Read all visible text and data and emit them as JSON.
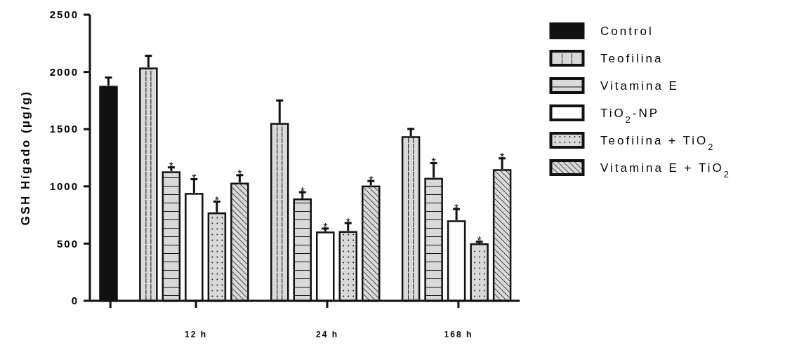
{
  "chart_data": {
    "type": "bar",
    "ylabel": "GSH Hígado (µg/g)",
    "categories": [
      null,
      "12 h",
      "24 h",
      "168 h"
    ],
    "ylim": [
      0,
      2500
    ],
    "yticks": [
      0,
      500,
      1000,
      1500,
      2000,
      2500
    ],
    "grid": false,
    "legend": "right",
    "series": [
      {
        "name": "Control",
        "color": "#111111",
        "values": [
          1880,
          null,
          null,
          null
        ],
        "errors": [
          [
            1880,
            1960
          ],
          null,
          null,
          null
        ]
      },
      {
        "name": "Teofilina",
        "color": "#d9d9d9",
        "values": [
          null,
          2040,
          1556,
          1440
        ],
        "errors": [
          null,
          [
            2040,
            2150
          ],
          [
            1556,
            1760
          ],
          [
            1440,
            1511
          ]
        ]
      },
      {
        "name": "Vitamina E",
        "color": "#d9d9d9",
        "values": [
          null,
          1133,
          896,
          1076
        ],
        "errors": [
          null,
          [
            1133,
            1175
          ],
          [
            896,
            958
          ],
          [
            1076,
            1213
          ]
        ],
        "value_labels": [
          null,
          "*",
          "*",
          "*"
        ]
      },
      {
        "name": "TiO$_{2}$-NP",
        "color": "#ffffff",
        "values": [
          null,
          944,
          607,
          705
        ],
        "errors": [
          null,
          [
            944,
            1072
          ],
          [
            607,
            641
          ],
          [
            705,
            811
          ]
        ],
        "value_labels": [
          null,
          "*",
          "*",
          "*"
        ]
      },
      {
        "name": "Teofilina + TiO$_{2}$",
        "color": "#d9d9d9",
        "values": [
          null,
          774,
          611,
          504
        ],
        "errors": [
          null,
          [
            774,
            876
          ],
          [
            611,
            688
          ],
          [
            504,
            525
          ]
        ],
        "value_labels": [
          null,
          "*",
          "*",
          "*"
        ]
      },
      {
        "name": "Vitamina E + TiO$_{2}$",
        "color": "#d9d9d9",
        "values": [
          null,
          1034,
          1009,
          1152
        ],
        "errors": [
          null,
          [
            1034,
            1107
          ],
          [
            1009,
            1056
          ],
          [
            1152,
            1254
          ]
        ],
        "value_labels": [
          null,
          "*",
          "*",
          "*"
        ]
      }
    ]
  }
}
